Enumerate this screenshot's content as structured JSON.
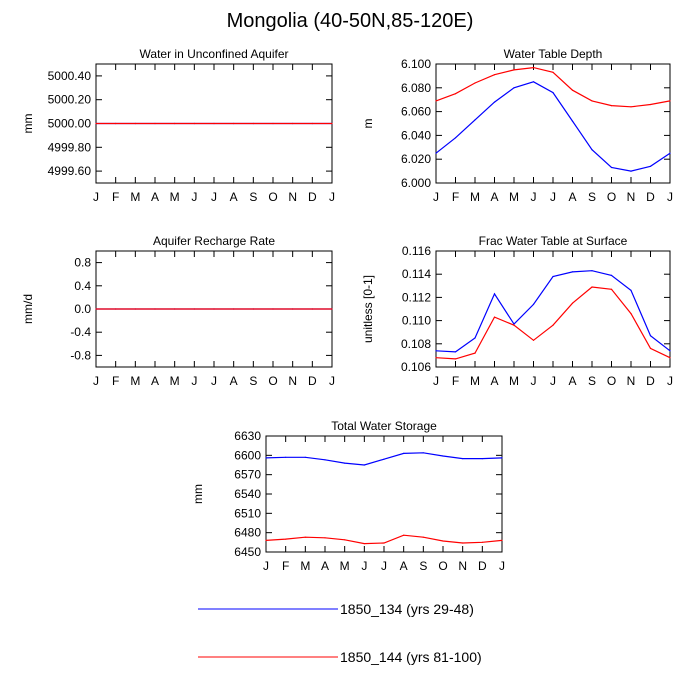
{
  "figure": {
    "title": "Mongolia (40-50N,85-120E)"
  },
  "months": [
    "J",
    "F",
    "M",
    "A",
    "M",
    "J",
    "J",
    "A",
    "S",
    "O",
    "N",
    "D",
    "J"
  ],
  "colors": {
    "series1": "#0000ff",
    "series2": "#ff0000"
  },
  "legend": [
    {
      "label": "1850_134 (yrs 29-48)",
      "color": "#0000ff"
    },
    {
      "label": "1850_144 (yrs 81-100)",
      "color": "#ff0000"
    }
  ],
  "chart_data": [
    {
      "type": "line",
      "title": "Water in Unconfined Aquifer",
      "ylabel": "mm",
      "ylim": [
        4999.5,
        5000.5
      ],
      "yticks": [
        4999.6,
        4999.8,
        5000.0,
        5000.2,
        5000.4
      ],
      "ytick_labels": [
        "4999.60",
        "4999.80",
        "5000.00",
        "5000.20",
        "5000.40"
      ],
      "categories": [
        "J",
        "F",
        "M",
        "A",
        "M",
        "J",
        "J",
        "A",
        "S",
        "O",
        "N",
        "D",
        "J"
      ],
      "series": [
        {
          "name": "1850_134 (yrs 29-48)",
          "color": "#0000ff",
          "values": [
            5000,
            5000,
            5000,
            5000,
            5000,
            5000,
            5000,
            5000,
            5000,
            5000,
            5000,
            5000,
            5000
          ]
        },
        {
          "name": "1850_144 (yrs 81-100)",
          "color": "#ff0000",
          "values": [
            5000,
            5000,
            5000,
            5000,
            5000,
            5000,
            5000,
            5000,
            5000,
            5000,
            5000,
            5000,
            5000
          ]
        }
      ]
    },
    {
      "type": "line",
      "title": "Water Table Depth",
      "ylabel": "m",
      "ylim": [
        6.0,
        6.1
      ],
      "yticks": [
        6.0,
        6.02,
        6.04,
        6.06,
        6.08,
        6.1
      ],
      "ytick_labels": [
        "6.000",
        "6.020",
        "6.040",
        "6.060",
        "6.080",
        "6.100"
      ],
      "categories": [
        "J",
        "F",
        "M",
        "A",
        "M",
        "J",
        "J",
        "A",
        "S",
        "O",
        "N",
        "D",
        "J"
      ],
      "series": [
        {
          "name": "1850_134 (yrs 29-48)",
          "color": "#0000ff",
          "values": [
            6.025,
            6.038,
            6.053,
            6.068,
            6.08,
            6.085,
            6.076,
            6.052,
            6.028,
            6.013,
            6.01,
            6.014,
            6.025
          ]
        },
        {
          "name": "1850_144 (yrs 81-100)",
          "color": "#ff0000",
          "values": [
            6.069,
            6.075,
            6.084,
            6.091,
            6.095,
            6.097,
            6.093,
            6.078,
            6.069,
            6.065,
            6.064,
            6.066,
            6.069
          ]
        }
      ]
    },
    {
      "type": "line",
      "title": "Aquifer Recharge Rate",
      "ylabel": "mm/d",
      "ylim": [
        -1.0,
        1.0
      ],
      "yticks": [
        -0.8,
        -0.4,
        0.0,
        0.4,
        0.8
      ],
      "ytick_labels": [
        "-0.8",
        "-0.4",
        "0.0",
        "0.4",
        "0.8"
      ],
      "categories": [
        "J",
        "F",
        "M",
        "A",
        "M",
        "J",
        "J",
        "A",
        "S",
        "O",
        "N",
        "D",
        "J"
      ],
      "series": [
        {
          "name": "1850_134 (yrs 29-48)",
          "color": "#0000ff",
          "values": [
            0,
            0,
            0,
            0,
            0,
            0,
            0,
            0,
            0,
            0,
            0,
            0,
            0
          ]
        },
        {
          "name": "1850_144 (yrs 81-100)",
          "color": "#ff0000",
          "values": [
            0,
            0,
            0,
            0,
            0,
            0,
            0,
            0,
            0,
            0,
            0,
            0,
            0
          ]
        }
      ]
    },
    {
      "type": "line",
      "title": "Frac Water Table at Surface",
      "ylabel": "unitless [0-1]",
      "ylim": [
        0.106,
        0.116
      ],
      "yticks": [
        0.106,
        0.108,
        0.11,
        0.112,
        0.114,
        0.116
      ],
      "ytick_labels": [
        "0.106",
        "0.108",
        "0.110",
        "0.112",
        "0.114",
        "0.116"
      ],
      "categories": [
        "J",
        "F",
        "M",
        "A",
        "M",
        "J",
        "J",
        "A",
        "S",
        "O",
        "N",
        "D",
        "J"
      ],
      "series": [
        {
          "name": "1850_134 (yrs 29-48)",
          "color": "#0000ff",
          "values": [
            0.1074,
            0.1073,
            0.1085,
            0.1123,
            0.1097,
            0.1114,
            0.1138,
            0.1142,
            0.1143,
            0.1139,
            0.1126,
            0.1087,
            0.1074
          ]
        },
        {
          "name": "1850_144 (yrs 81-100)",
          "color": "#ff0000",
          "values": [
            0.1068,
            0.1067,
            0.1072,
            0.1103,
            0.1096,
            0.1083,
            0.1096,
            0.1115,
            0.1129,
            0.1127,
            0.1106,
            0.1076,
            0.1068
          ]
        }
      ]
    },
    {
      "type": "line",
      "title": "Total Water Storage",
      "ylabel": "mm",
      "ylim": [
        6450,
        6630
      ],
      "yticks": [
        6450,
        6480,
        6510,
        6540,
        6570,
        6600,
        6630
      ],
      "ytick_labels": [
        "6450",
        "6480",
        "6510",
        "6540",
        "6570",
        "6600",
        "6630"
      ],
      "categories": [
        "J",
        "F",
        "M",
        "A",
        "M",
        "J",
        "J",
        "A",
        "S",
        "O",
        "N",
        "D",
        "J"
      ],
      "series": [
        {
          "name": "1850_134 (yrs 29-48)",
          "color": "#0000ff",
          "values": [
            6596,
            6597,
            6597,
            6593,
            6588,
            6585,
            6594,
            6603,
            6604,
            6599,
            6595,
            6595,
            6596
          ]
        },
        {
          "name": "1850_144 (yrs 81-100)",
          "color": "#ff0000",
          "values": [
            6468,
            6470,
            6473,
            6472,
            6469,
            6463,
            6464,
            6476,
            6473,
            6467,
            6464,
            6465,
            6468
          ]
        }
      ]
    }
  ]
}
